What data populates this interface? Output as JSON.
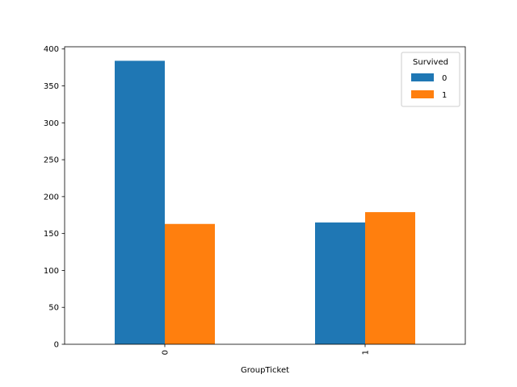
{
  "chart_data": {
    "type": "bar",
    "categories": [
      "0",
      "1"
    ],
    "series": [
      {
        "name": "0",
        "values": [
          384,
          165
        ],
        "color": "#1f77b4"
      },
      {
        "name": "1",
        "values": [
          163,
          179
        ],
        "color": "#ff7f0e"
      }
    ],
    "xlabel": "GroupTicket",
    "ylabel": "",
    "ylim": [
      0,
      403
    ],
    "yticks": [
      0,
      50,
      100,
      150,
      200,
      250,
      300,
      350,
      400
    ],
    "legend": {
      "title": "Survived",
      "placement": "top-right"
    },
    "grid": false
  }
}
